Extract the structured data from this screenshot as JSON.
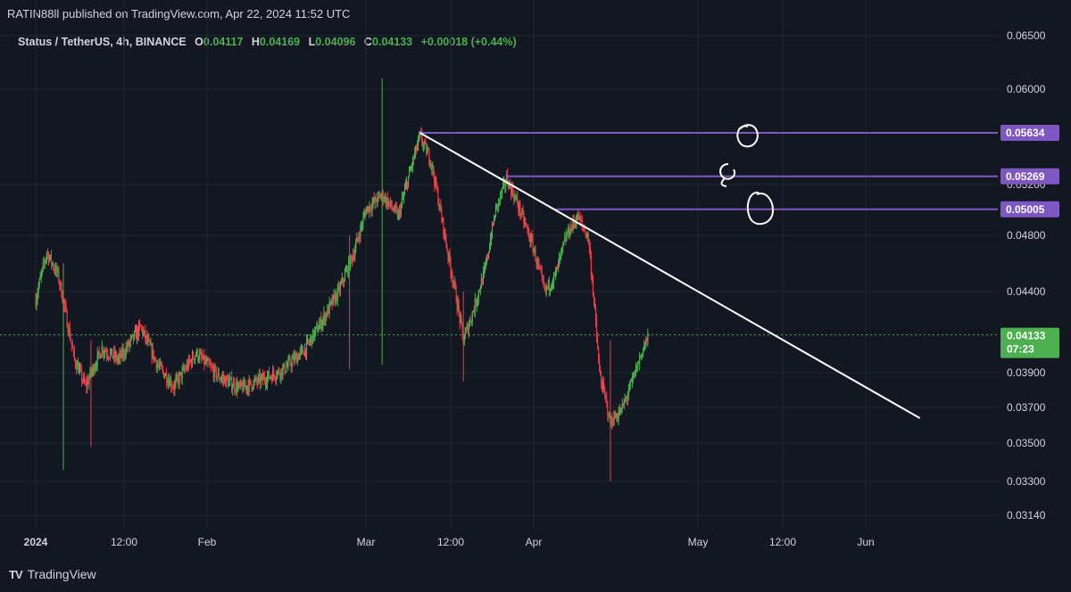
{
  "header": {
    "published_by": "RATIN88ll published on TradingView.com, Apr 22, 2024 11:52 UTC"
  },
  "legend": {
    "symbol": "Status / TetherUS, 4h, BINANCE",
    "o_label": "O",
    "o_value": "0.04117",
    "h_label": "H",
    "h_value": "0.04169",
    "l_label": "L",
    "l_value": "0.04096",
    "c_label": "C",
    "c_value": "0.04133",
    "change": "+0.00018 (+0.44%)"
  },
  "brand": {
    "name": "TradingView",
    "logo": "TV"
  },
  "colors": {
    "background": "#131722",
    "grid": "#1f2430",
    "up": "#4caf50",
    "down": "#f23645",
    "level": "#7e57c2",
    "trendline": "#ffffff",
    "price_line": "#4caf50"
  },
  "chart_data": {
    "type": "candlestick",
    "symbol": "Status / TetherUS",
    "interval": "4h",
    "exchange": "BINANCE",
    "y_ticks": [
      "0.06500",
      "0.06000",
      "0.05200",
      "0.04800",
      "0.04400",
      "0.03900",
      "0.03700",
      "0.03500",
      "0.03300",
      "0.03140"
    ],
    "x_ticks": [
      "2024",
      "12:00",
      "Feb",
      "Mar",
      "12:00",
      "Apr",
      "May",
      "12:00",
      "Jun"
    ],
    "price_anchors": [
      [
        "2024-01-01",
        0.0435
      ],
      [
        "2024-01-03",
        0.0468
      ],
      [
        "2024-01-05",
        0.0452
      ],
      [
        "2024-01-08",
        0.0398
      ],
      [
        "2024-01-10",
        0.0382
      ],
      [
        "2024-01-13",
        0.0405
      ],
      [
        "2024-01-16",
        0.0398
      ],
      [
        "2024-01-20",
        0.0418
      ],
      [
        "2024-01-23",
        0.0395
      ],
      [
        "2024-01-26",
        0.0382
      ],
      [
        "2024-01-30",
        0.0402
      ],
      [
        "2024-02-03",
        0.0388
      ],
      [
        "2024-02-07",
        0.0381
      ],
      [
        "2024-02-11",
        0.0386
      ],
      [
        "2024-02-15",
        0.0392
      ],
      [
        "2024-02-19",
        0.0405
      ],
      [
        "2024-02-22",
        0.0422
      ],
      [
        "2024-02-25",
        0.044
      ],
      [
        "2024-02-28",
        0.047
      ],
      [
        "2024-03-01",
        0.05
      ],
      [
        "2024-03-04",
        0.0512
      ],
      [
        "2024-03-07",
        0.0495
      ],
      [
        "2024-03-10",
        0.0545
      ],
      [
        "2024-03-11",
        0.056
      ],
      [
        "2024-03-13",
        0.054
      ],
      [
        "2024-03-16",
        0.047
      ],
      [
        "2024-03-19",
        0.041
      ],
      [
        "2024-03-21",
        0.043
      ],
      [
        "2024-03-23",
        0.0455
      ],
      [
        "2024-03-25",
        0.05
      ],
      [
        "2024-03-27",
        0.0525
      ],
      [
        "2024-03-29",
        0.0505
      ],
      [
        "2024-04-01",
        0.047
      ],
      [
        "2024-04-03",
        0.044
      ],
      [
        "2024-04-05",
        0.0452
      ],
      [
        "2024-04-07",
        0.048
      ],
      [
        "2024-04-09",
        0.0495
      ],
      [
        "2024-04-11",
        0.0478
      ],
      [
        "2024-04-13",
        0.039
      ],
      [
        "2024-04-15",
        0.0362
      ],
      [
        "2024-04-17",
        0.0368
      ],
      [
        "2024-04-19",
        0.0385
      ],
      [
        "2024-04-21",
        0.0405
      ],
      [
        "2024-04-22",
        0.0413
      ]
    ],
    "last_close": 0.04133,
    "horizontal_levels": [
      {
        "label": "0.05634",
        "value": 0.05634,
        "start": "2024-03-11"
      },
      {
        "label": "0.05269",
        "value": 0.05269,
        "start": "2024-03-27"
      },
      {
        "label": "0.05005",
        "value": 0.05005,
        "start": "2024-04-05"
      }
    ],
    "trendline": {
      "from": [
        "2024-03-11",
        0.05634
      ],
      "to": [
        "2024-06-11",
        0.0364
      ]
    },
    "current_price_badge": {
      "price": "0.04133",
      "countdown": "07:23"
    }
  }
}
